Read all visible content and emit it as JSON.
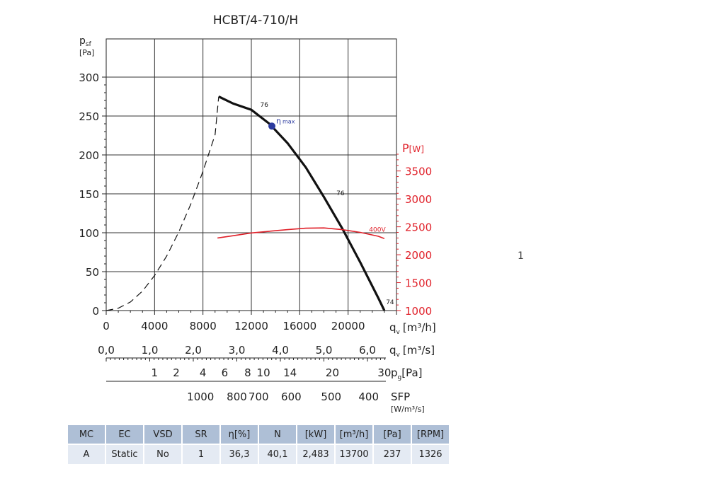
{
  "chart_data": {
    "type": "line",
    "title": "HCBT/4-710/H",
    "y_label": {
      "main": "p",
      "sub": "sf",
      "unit": "[Pa]"
    },
    "y_ticks": [
      0,
      50,
      100,
      150,
      200,
      250,
      300
    ],
    "ylim": [
      0,
      300
    ],
    "x_ticks": [
      0,
      4000,
      8000,
      12000,
      16000,
      20000
    ],
    "xlim": [
      0,
      24000
    ],
    "x_tick_labels": [
      "0",
      "4000",
      "8000",
      "12000",
      "16000",
      "20000"
    ],
    "x_label": {
      "main": "q",
      "sub": "v",
      "unit": "[m³/h]"
    },
    "y2_label": {
      "main": "P",
      "unit": "[W]"
    },
    "y2_ticks": [
      1000,
      1500,
      2000,
      2500,
      3000,
      3500
    ],
    "y2_tick_labels": [
      "1000",
      "1500",
      "2000",
      "2500",
      "3000",
      "3500"
    ],
    "y2lim": [
      1000,
      3800
    ],
    "grid": true,
    "series": [
      {
        "name": "",
        "style": "dashed",
        "color": "#111111",
        "x": [
          0,
          1000,
          2000,
          3000,
          4000,
          5000,
          6000,
          7000,
          8000,
          9000,
          9300
        ],
        "y": [
          0,
          3,
          11,
          25,
          45,
          70,
          101,
          137,
          179,
          226,
          275
        ]
      },
      {
        "name": "",
        "style": "solid",
        "color": "#111111",
        "x": [
          9300,
          10500,
          12000,
          13500,
          15000,
          16500,
          18000,
          19500,
          21000,
          22500,
          23000
        ],
        "y": [
          275,
          266,
          258,
          240,
          215,
          184,
          146,
          106,
          62,
          16,
          0
        ]
      },
      {
        "name": "400V",
        "style": "solid",
        "color": "#e0212a",
        "axis": "y2",
        "x": [
          9200,
          10500,
          12000,
          13500,
          15000,
          16500,
          18000,
          19500,
          21000,
          22500,
          23000
        ],
        "y": [
          2300,
          2340,
          2390,
          2420,
          2450,
          2475,
          2480,
          2450,
          2400,
          2330,
          2290
        ]
      }
    ],
    "eta_max_point": {
      "x": 13700,
      "y": 237,
      "label_main": "η",
      "label_sub": "max",
      "color": "#2b3a9f"
    },
    "curve_labels": [
      {
        "text": "76",
        "x": 12500,
        "y": 262
      },
      {
        "text": "76",
        "x": 18800,
        "y": 148
      },
      {
        "text": "74",
        "x": 22900,
        "y": 8
      },
      {
        "text": "400V",
        "x": 21500,
        "y2": 2410
      }
    ],
    "axes_extra": [
      {
        "name": "qv_m3s",
        "values": [
          0,
          1.0,
          2.0,
          3.0,
          4.0,
          5.0,
          6.0
        ],
        "labels": [
          "0,0",
          "1,0",
          "2,0",
          "3,0",
          "4,0",
          "5,0",
          "6,0"
        ],
        "label_main": "q",
        "label_sub": "v",
        "unit": "[m³/s]"
      },
      {
        "name": "pg",
        "labels": [
          "1",
          "2",
          "4",
          "6",
          "8",
          "10",
          "14",
          "20",
          "30"
        ],
        "positions_qv": [
          4000,
          5800,
          8000,
          9800,
          11700,
          13000,
          15200,
          18700,
          23000
        ],
        "label_main": "p",
        "label_sub": "g",
        "unit": "[Pa]"
      },
      {
        "name": "sfp",
        "labels": [
          "1000",
          "800",
          "700",
          "600",
          "500",
          "400"
        ],
        "positions_qv": [
          7800,
          10800,
          12600,
          15300,
          18600,
          21700
        ],
        "label_main": "SFP",
        "unit": "[W/m³/s]"
      }
    ]
  },
  "table": {
    "headers": [
      "MC",
      "EC",
      "VSD",
      "SR",
      "η[%]",
      "N",
      "[kW]",
      "[m³/h]",
      "[Pa]",
      "[RPM]"
    ],
    "row": [
      "A",
      "Static",
      "No",
      "1",
      "36,3",
      "40,1",
      "2,483",
      "13700",
      "237",
      "1326"
    ]
  },
  "stray_mark": "1",
  "colors": {
    "red": "#e0212a",
    "table_header": "#aebfd6",
    "table_cell": "#e4eaf3",
    "eta_point": "#2b3a9f"
  }
}
